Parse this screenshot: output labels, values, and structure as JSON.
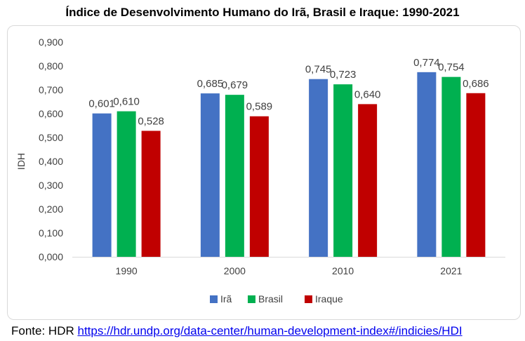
{
  "title": "Índice de Desenvolvimento Humano do Irã, Brasil e Iraque: 1990-2021",
  "source": {
    "prefix": "Fonte: HDR ",
    "link_text": "https://hdr.undp.org/data-center/human-development-index#/indicies/HDI"
  },
  "chart_data": {
    "type": "bar",
    "categories": [
      "1990",
      "2000",
      "2010",
      "2021"
    ],
    "series": [
      {
        "name": "Irã",
        "color": "#4472c4",
        "values": [
          0.601,
          0.685,
          0.745,
          0.774
        ],
        "labels": [
          "0,601",
          "0,685",
          "0,745",
          "0,774"
        ]
      },
      {
        "name": "Brasil",
        "color": "#00b050",
        "values": [
          0.61,
          0.679,
          0.723,
          0.754
        ],
        "labels": [
          "0,610",
          "0,679",
          "0,723",
          "0,754"
        ]
      },
      {
        "name": "Iraque",
        "color": "#c00000",
        "values": [
          0.528,
          0.589,
          0.64,
          0.686
        ],
        "labels": [
          "0,528",
          "0,589",
          "0,640",
          "0,686"
        ]
      }
    ],
    "xlabel": "",
    "ylabel": "IDH",
    "ylim": [
      0,
      0.9
    ],
    "yticks": [
      "0,000",
      "0,100",
      "0,200",
      "0,300",
      "0,400",
      "0,500",
      "0,600",
      "0,700",
      "0,800",
      "0,900"
    ],
    "grid": false,
    "legend": "bottom"
  }
}
